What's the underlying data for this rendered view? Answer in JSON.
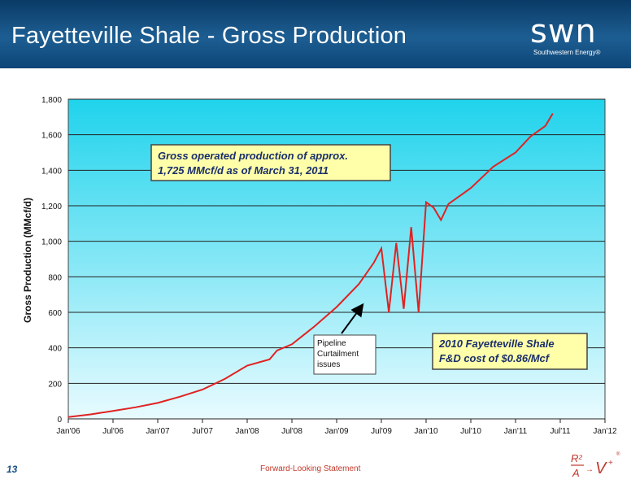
{
  "header": {
    "title": "Fayetteville Shale - Gross Production",
    "logo_word": "swn",
    "logo_sub": "Southwestern Energy®"
  },
  "footer": {
    "page_number": "13",
    "note": "Forward-Looking Statement"
  },
  "colors": {
    "header_bg": "#1d5e92",
    "plot_bg_top": "#1fd3ec",
    "plot_bg_bottom": "#e8fbff",
    "series_line": "#e02222",
    "callout_fill": "#ffffaa",
    "callout_border": "#444444"
  },
  "chart_data": {
    "type": "line",
    "ylabel": "Gross Production (MMcf/d)",
    "xlabel": "",
    "ylim": [
      0,
      1800
    ],
    "yticks": [
      0,
      200,
      400,
      600,
      800,
      1000,
      1200,
      1400,
      1600,
      1800
    ],
    "ytick_labels": [
      "0",
      "200",
      "400",
      "600",
      "800",
      "1,000",
      "1,200",
      "1,400",
      "1,600",
      "1,800"
    ],
    "xlim": [
      "2006-01",
      "2012-01"
    ],
    "xtick_labels": [
      "Jan'06",
      "Jul'06",
      "Jan'07",
      "Jul'07",
      "Jan'08",
      "Jul'08",
      "Jan'09",
      "Jul'09",
      "Jan'10",
      "Jul'10",
      "Jan'11",
      "Jul'11",
      "Jan'12"
    ],
    "grid": "horizontal",
    "series": [
      {
        "values": [
          [
            "2006-01",
            10
          ],
          [
            "2006-04",
            25
          ],
          [
            "2006-07",
            45
          ],
          [
            "2006-10",
            65
          ],
          [
            "2007-01",
            90
          ],
          [
            "2007-04",
            125
          ],
          [
            "2007-07",
            165
          ],
          [
            "2007-10",
            225
          ],
          [
            "2008-01",
            300
          ],
          [
            "2008-04",
            335
          ],
          [
            "2008-05",
            385
          ],
          [
            "2008-07",
            420
          ],
          [
            "2008-10",
            520
          ],
          [
            "2009-01",
            630
          ],
          [
            "2009-04",
            760
          ],
          [
            "2009-06",
            880
          ],
          [
            "2009-07",
            960
          ],
          [
            "2009-08",
            600
          ],
          [
            "2009-09",
            990
          ],
          [
            "2009-10",
            620
          ],
          [
            "2009-11",
            1080
          ],
          [
            "2009-12",
            600
          ],
          [
            "2010-01",
            1220
          ],
          [
            "2010-02",
            1190
          ],
          [
            "2010-03",
            1120
          ],
          [
            "2010-04",
            1210
          ],
          [
            "2010-07",
            1300
          ],
          [
            "2010-10",
            1420
          ],
          [
            "2011-01",
            1500
          ],
          [
            "2011-03",
            1590
          ],
          [
            "2011-05",
            1650
          ],
          [
            "2011-06",
            1720
          ]
        ]
      }
    ],
    "annotations": [
      {
        "id": "gross",
        "lines": [
          "Gross operated production of approx.",
          "1,725 MMcf/d as of March 31, 2011"
        ]
      },
      {
        "id": "pipeline",
        "lines": [
          "Pipeline",
          "Curtailment",
          "issues"
        ]
      },
      {
        "id": "fd",
        "lines": [
          "2010 Fayetteville Shale",
          "F&D cost of $0.86/Mcf"
        ]
      }
    ]
  }
}
